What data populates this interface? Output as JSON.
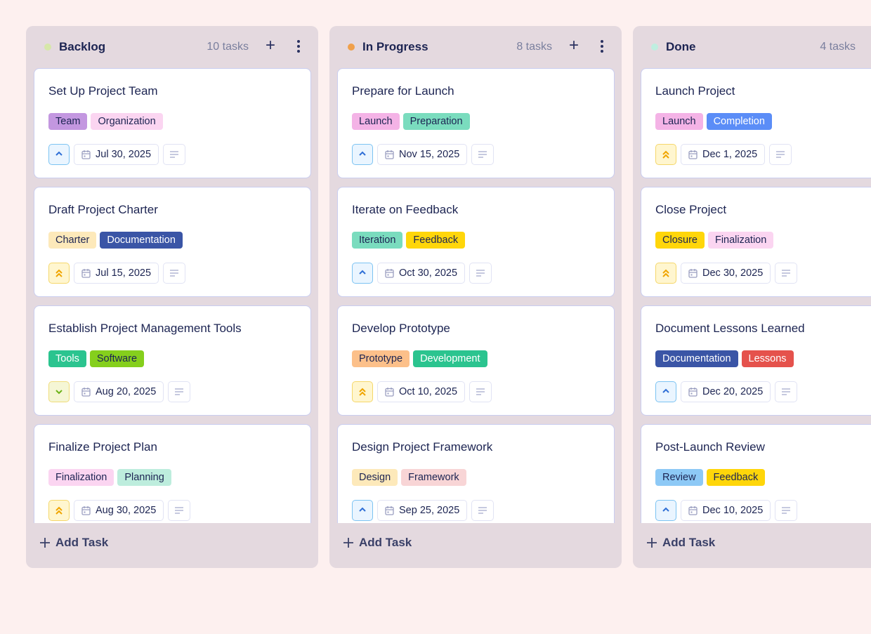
{
  "add_task_label": "Add Task",
  "columns": [
    {
      "title": "Backlog",
      "count": "10 tasks",
      "dot_color": "#d6e7a9",
      "show_actions": true,
      "cards": [
        {
          "title": "Set Up Project Team",
          "priority": "medium",
          "date": "Jul 30, 2025",
          "tags": [
            {
              "label": "Team",
              "bg": "#c397e0",
              "fg": "#1c2452"
            },
            {
              "label": "Organization",
              "bg": "#fbd5f1",
              "fg": "#1c2452"
            }
          ]
        },
        {
          "title": "Draft Project Charter",
          "priority": "high",
          "date": "Jul 15, 2025",
          "tags": [
            {
              "label": "Charter",
              "bg": "#fde9ba",
              "fg": "#1c2452"
            },
            {
              "label": "Documentation",
              "bg": "#3a55a6",
              "fg": "#ffffff"
            }
          ]
        },
        {
          "title": "Establish Project Management Tools",
          "priority": "low",
          "date": "Aug 20, 2025",
          "tags": [
            {
              "label": "Tools",
              "bg": "#2bc48f",
              "fg": "#ffffff"
            },
            {
              "label": "Software",
              "bg": "#85cf1c",
              "fg": "#1c2452"
            }
          ]
        },
        {
          "title": "Finalize Project Plan",
          "priority": "high",
          "date": "Aug 30, 2025",
          "tags": [
            {
              "label": "Finalization",
              "bg": "#fbd5f1",
              "fg": "#1c2452"
            },
            {
              "label": "Planning",
              "bg": "#bdeddd",
              "fg": "#1c2452"
            }
          ]
        }
      ]
    },
    {
      "title": "In Progress",
      "count": "8 tasks",
      "dot_color": "#f0a04b",
      "show_actions": true,
      "cards": [
        {
          "title": "Prepare for Launch",
          "priority": "medium",
          "date": "Nov 15, 2025",
          "tags": [
            {
              "label": "Launch",
              "bg": "#f4b3e6",
              "fg": "#1c2452"
            },
            {
              "label": "Preparation",
              "bg": "#7adcbe",
              "fg": "#1c2452"
            }
          ]
        },
        {
          "title": "Iterate on Feedback",
          "priority": "medium",
          "date": "Oct 30, 2025",
          "tags": [
            {
              "label": "Iteration",
              "bg": "#7adcbe",
              "fg": "#1c2452"
            },
            {
              "label": "Feedback",
              "bg": "#ffd60a",
              "fg": "#1c2452"
            }
          ]
        },
        {
          "title": "Develop Prototype",
          "priority": "high",
          "date": "Oct 10, 2025",
          "tags": [
            {
              "label": "Prototype",
              "bg": "#fcc08a",
              "fg": "#1c2452"
            },
            {
              "label": "Development",
              "bg": "#2bc48f",
              "fg": "#ffffff"
            }
          ]
        },
        {
          "title": "Design Project Framework",
          "priority": "medium",
          "date": "Sep 25, 2025",
          "tags": [
            {
              "label": "Design",
              "bg": "#fde9ba",
              "fg": "#1c2452"
            },
            {
              "label": "Framework",
              "bg": "#f8d5d6",
              "fg": "#1c2452"
            }
          ]
        }
      ]
    },
    {
      "title": "Done",
      "count": "4 tasks",
      "dot_color": "#bfeee0",
      "show_actions": false,
      "cards": [
        {
          "title": "Launch Project",
          "priority": "high",
          "date": "Dec 1, 2025",
          "tags": [
            {
              "label": "Launch",
              "bg": "#f4b3e6",
              "fg": "#1c2452"
            },
            {
              "label": "Completion",
              "bg": "#5b8df7",
              "fg": "#ffffff"
            }
          ]
        },
        {
          "title": "Close Project",
          "priority": "high",
          "date": "Dec 30, 2025",
          "tags": [
            {
              "label": "Closure",
              "bg": "#ffd60a",
              "fg": "#1c2452"
            },
            {
              "label": "Finalization",
              "bg": "#fbd5f1",
              "fg": "#1c2452"
            }
          ]
        },
        {
          "title": "Document Lessons Learned",
          "priority": "medium",
          "date": "Dec 20, 2025",
          "tags": [
            {
              "label": "Documentation",
              "bg": "#3a55a6",
              "fg": "#ffffff"
            },
            {
              "label": "Lessons",
              "bg": "#e5524c",
              "fg": "#ffffff"
            }
          ]
        },
        {
          "title": "Post-Launch Review",
          "priority": "medium",
          "date": "Dec 10, 2025",
          "tags": [
            {
              "label": "Review",
              "bg": "#8dc9f6",
              "fg": "#1c2452"
            },
            {
              "label": "Feedback",
              "bg": "#ffd60a",
              "fg": "#1c2452"
            }
          ]
        }
      ]
    }
  ]
}
